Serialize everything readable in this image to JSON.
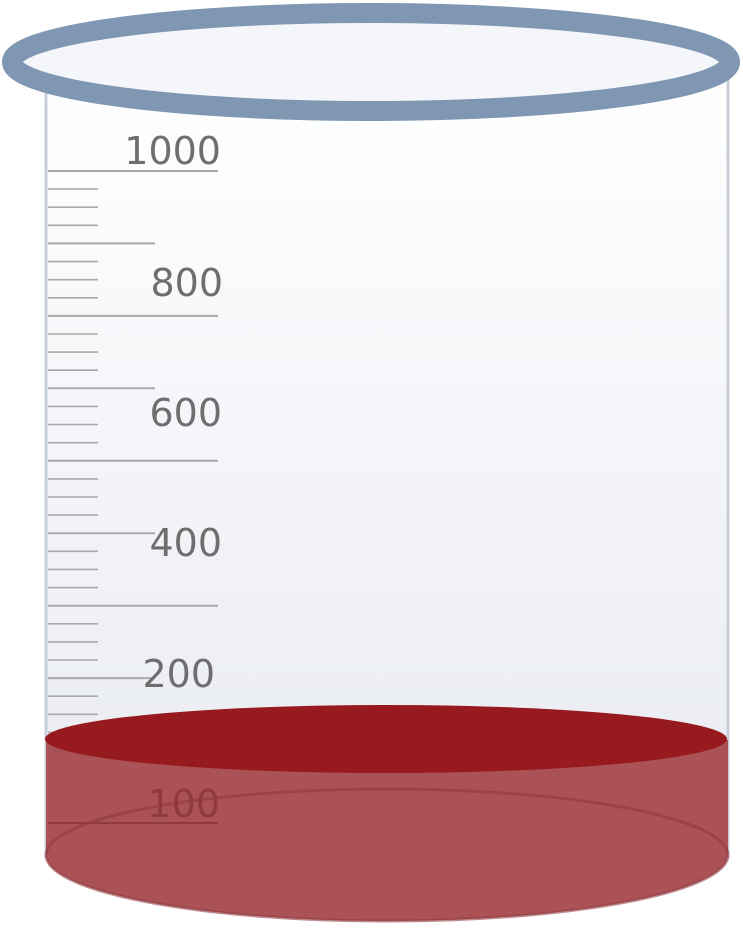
{
  "beaker": {
    "scale_labels": [
      "1000",
      "800",
      "600",
      "400",
      "200",
      "100"
    ],
    "capacity": 1000,
    "liquid_level": 150,
    "colors": {
      "rim": "#7f97b2",
      "rim_inner": "#f4f6fa",
      "glass_top": "#ffffff",
      "glass_bottom": "#e6e9f1",
      "glass_edge": "#c9cfd9",
      "tick": "#a9a9a9",
      "label": "#6e6e6e",
      "liquid_surface": "#971a1e",
      "liquid_body": "#a84a4e",
      "liquid_edge": "#8f3a3f"
    }
  }
}
